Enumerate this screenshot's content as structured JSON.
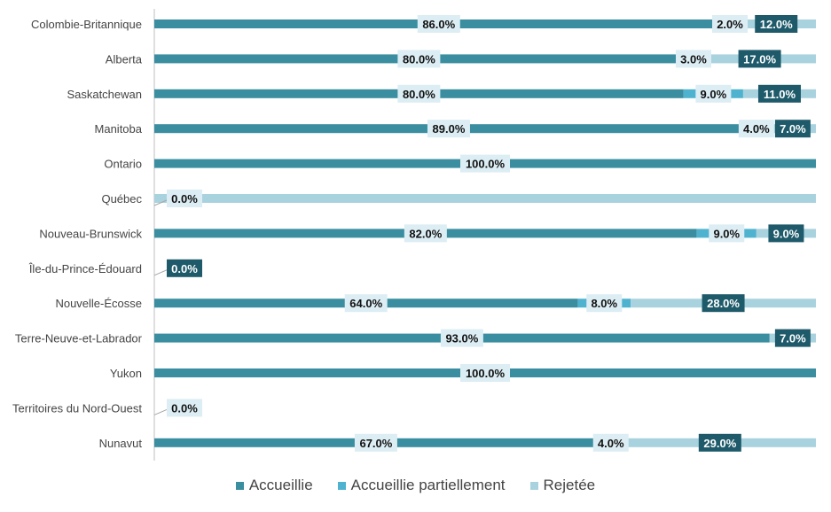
{
  "colors": {
    "accueillie": "#3a8ea0",
    "partielle": "#4fb3d0",
    "rejetee": "#a9d2df",
    "label_light": "#dcedf4",
    "label_dark": "#1e5a6a"
  },
  "legend": [
    {
      "name": "Accueillie",
      "color": "#3a8ea0"
    },
    {
      "name": "Accueillie partiellement",
      "color": "#4fb3d0"
    },
    {
      "name": "Rejetée",
      "color": "#a9d2df"
    }
  ],
  "chart_data": {
    "type": "bar",
    "orientation": "horizontal",
    "stacked": true,
    "xlim": [
      0,
      100
    ],
    "grid": false,
    "legend_position": "bottom",
    "categories": [
      "Colombie-Britannique",
      "Alberta",
      "Saskatchewan",
      "Manitoba",
      "Ontario",
      "Québec",
      "Nouveau-Brunswick",
      "Île-du-Prince-Édouard",
      "Nouvelle-Écosse",
      "Terre-Neuve-et-Labrador",
      "Yukon",
      "Territoires du Nord-Ouest",
      "Nunavut"
    ],
    "series": [
      {
        "name": "Accueillie",
        "values": [
          86,
          80,
          80,
          89,
          100,
          0,
          82,
          0,
          64,
          93,
          100,
          0,
          67
        ],
        "labels": [
          "86.0%",
          "80.0%",
          "80.0%",
          "89.0%",
          "100.0%",
          "0.0%",
          "82.0%",
          null,
          "64.0%",
          "93.0%",
          "100.0%",
          "0.0%",
          "67.0%"
        ]
      },
      {
        "name": "Accueillie partiellement",
        "values": [
          2,
          3,
          9,
          4,
          0,
          0,
          9,
          0,
          8,
          0,
          0,
          0,
          4
        ],
        "labels": [
          "2.0%",
          "3.0%",
          "9.0%",
          "4.0%",
          null,
          null,
          "9.0%",
          null,
          "8.0%",
          null,
          null,
          null,
          "4.0%"
        ]
      },
      {
        "name": "Rejetée",
        "values": [
          12,
          17,
          11,
          7,
          0,
          100,
          9,
          0,
          28,
          7,
          0,
          0,
          29
        ],
        "labels": [
          "12.0%",
          "17.0%",
          "11.0%",
          "7.0%",
          null,
          null,
          "9.0%",
          "0.0%",
          "28.0%",
          "7.0%",
          null,
          null,
          "29.0%"
        ]
      }
    ]
  }
}
